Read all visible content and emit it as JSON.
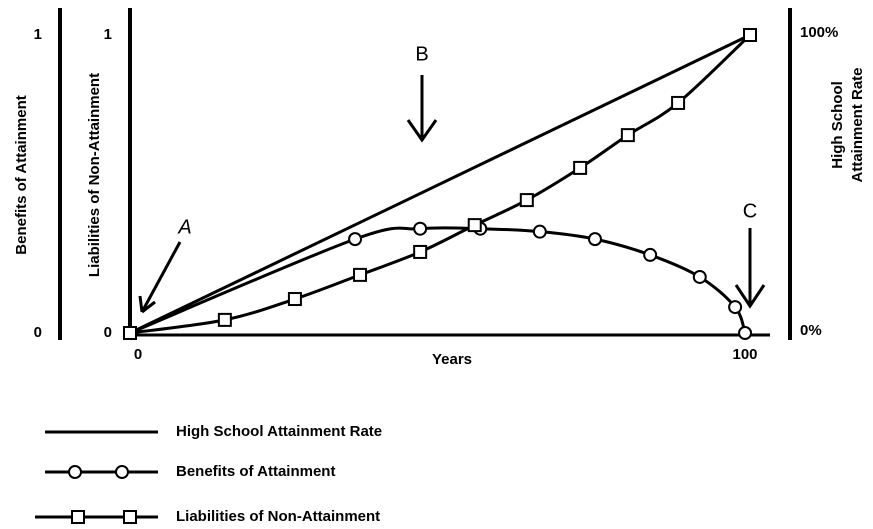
{
  "chart_data": {
    "type": "line",
    "x_label": "Years",
    "y_labels": [
      "Benefits of Attainment",
      "Liabilities of Non-Attainment"
    ],
    "y2_label": [
      "High School",
      "Attainment Rate"
    ],
    "xlim": [
      0,
      100
    ],
    "xticks": [
      0,
      100
    ],
    "ylim": [
      0,
      1
    ],
    "yticks": [
      0,
      1
    ],
    "y2lim": [
      0,
      100
    ],
    "y2ticks": [
      {
        "value": 0,
        "label": "0%"
      },
      {
        "value": 100,
        "label": "100%"
      }
    ],
    "series": [
      {
        "name": "High School Attainment Rate",
        "color": "#000000",
        "marker": "none",
        "axis": "y2",
        "x": [
          0,
          100
        ],
        "values": [
          0,
          100
        ]
      },
      {
        "name": "Benefits of Attainment",
        "color": "#000000",
        "marker": "circle",
        "x": [
          0,
          36.3,
          46.8,
          56.5,
          66.1,
          75,
          83.9,
          91.9,
          97.6,
          99.2
        ],
        "values": [
          0,
          0.315,
          0.35,
          0.35,
          0.34,
          0.315,
          0.262,
          0.188,
          0.087,
          0
        ]
      },
      {
        "name": "Liabilities of Non-Attainment",
        "color": "#000000",
        "marker": "square",
        "x": [
          0,
          15.3,
          26.6,
          37.1,
          46.8,
          55.6,
          64,
          72.6,
          80.3,
          88.4,
          100
        ],
        "values": [
          0,
          0.044,
          0.114,
          0.195,
          0.272,
          0.362,
          0.446,
          0.554,
          0.664,
          0.772,
          1
        ]
      }
    ],
    "annotations": [
      "A",
      "B",
      "C"
    ]
  }
}
